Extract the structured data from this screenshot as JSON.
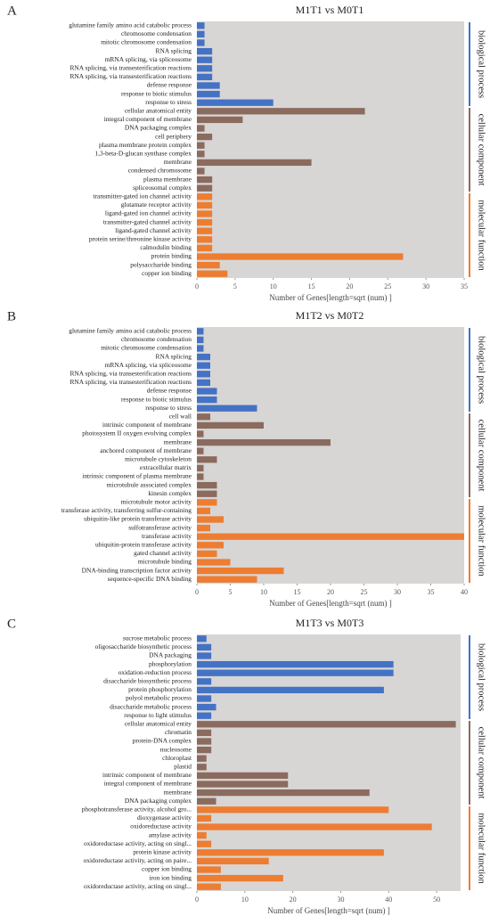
{
  "chart_data": [
    {
      "type": "barh",
      "label": "A",
      "title": "M1T1 vs M0T1",
      "xlabel": "Number of Genes[length=sqrt (num) ]",
      "categories": [
        "glutamine family amino acid catabolic process",
        "chromosome condensation",
        "mitotic chromosome condensation",
        "RNA splicing",
        "mRNA splicing, via spliceosome",
        "RNA splicing, via transesterification reactions",
        "RNA splicing, via transesterification reactions",
        "defense response",
        "response to biotic stimulus",
        "response to stress",
        "cellular anatomical entity",
        "integral component of membrane",
        "DNA packaging complex",
        "cell periphery",
        "plasma membrane protein complex",
        "1,3-beta-D-glucan synthase complex",
        "membrane",
        "condensed chromosome",
        "plasma membrane",
        "spliceosomal complex",
        "transmitter-gated ion channel activity",
        "glutamate receptor activity",
        "ligand-gated ion channel activity",
        "transmitter-gated channel activity",
        "ligand-gated channel activity",
        "protein serine/threonine kinase activity",
        "calmodulin binding",
        "protein binding",
        "polysaccharide binding",
        "copper ion binding"
      ],
      "series": [
        {
          "name": "biological process",
          "color": "#4472c4",
          "values": [
            1,
            1,
            1,
            2,
            2,
            2,
            2,
            3,
            3,
            10,
            null,
            null,
            null,
            null,
            null,
            null,
            null,
            null,
            null,
            null,
            null,
            null,
            null,
            null,
            null,
            null,
            null,
            null,
            null,
            null
          ]
        },
        {
          "name": "cellular component",
          "color": "#8b6b5e",
          "values": [
            null,
            null,
            null,
            null,
            null,
            null,
            null,
            null,
            null,
            null,
            22,
            6,
            1,
            2,
            1,
            1,
            15,
            1,
            2,
            2,
            null,
            null,
            null,
            null,
            null,
            null,
            null,
            null,
            null,
            null
          ]
        },
        {
          "name": "molecular function",
          "color": "#ed7d31",
          "values": [
            null,
            null,
            null,
            null,
            null,
            null,
            null,
            null,
            null,
            null,
            null,
            null,
            null,
            null,
            null,
            null,
            null,
            null,
            null,
            null,
            2,
            2,
            2,
            2,
            2,
            2,
            2,
            27,
            3,
            4
          ]
        }
      ],
      "xlim": [
        0,
        35
      ],
      "xticks": [
        0,
        5,
        10,
        15,
        20,
        25,
        30,
        35
      ]
    },
    {
      "type": "barh",
      "label": "B",
      "title": "M1T2 vs M0T2",
      "xlabel": "Number of Genes[length=sqrt (num) ]",
      "categories": [
        "glutamine family amino acid catabolic process",
        "chromosome condensation",
        "mitotic chromosome condensation",
        "RNA splicing",
        "mRNA splicing, via spliceosome",
        "RNA splicing, via transesterification reactions",
        "RNA splicing, via transesterification reactions",
        "defense response",
        "response to biotic stimulus",
        "response to stress",
        "cell wall",
        "intrinsic component of membrane",
        "photosystem II oxygen evolving complex",
        "membrane",
        "anchored component of membrane",
        "microtubule cytoskeleton",
        "extracellular matrix",
        "intrinsic component of plasma membrane",
        "microtubule associated complex",
        "kinesin complex",
        "microtubule motor activity",
        "transferase activity, transferring sulfur-containing",
        "ubiquitin-like protein transferase activity",
        "sulfotransferase activity",
        "transferase activity",
        "ubiquitin-protein transferase activity",
        "gated channel activity",
        "microtubule binding",
        "DNA-binding transcription factor activity",
        "sequence-specific DNA binding"
      ],
      "series": [
        {
          "name": "biological process",
          "color": "#4472c4",
          "values": [
            1,
            1,
            1,
            2,
            2,
            2,
            2,
            3,
            3,
            9,
            null,
            null,
            null,
            null,
            null,
            null,
            null,
            null,
            null,
            null,
            null,
            null,
            null,
            null,
            null,
            null,
            null,
            null,
            null,
            null
          ]
        },
        {
          "name": "cellular component",
          "color": "#8b6b5e",
          "values": [
            null,
            null,
            null,
            null,
            null,
            null,
            null,
            null,
            null,
            null,
            2,
            10,
            1,
            20,
            1,
            3,
            1,
            1,
            3,
            3,
            null,
            null,
            null,
            null,
            null,
            null,
            null,
            null,
            null,
            null
          ]
        },
        {
          "name": "molecular function",
          "color": "#ed7d31",
          "values": [
            null,
            null,
            null,
            null,
            null,
            null,
            null,
            null,
            null,
            null,
            null,
            null,
            null,
            null,
            null,
            null,
            null,
            null,
            null,
            null,
            3,
            2,
            4,
            2,
            40,
            4,
            3,
            5,
            13,
            9
          ]
        }
      ],
      "xlim": [
        0,
        40
      ],
      "xticks": [
        0,
        5,
        10,
        15,
        20,
        25,
        30,
        35,
        40
      ]
    },
    {
      "type": "barh",
      "label": "C",
      "title": "M1T3 vs M0T3",
      "xlabel": "Number of Genes[length=sqrt (num) ]",
      "categories": [
        "sucrose metabolic process",
        "oligosaccharide biosynthetic process",
        "DNA packaging",
        "phosphorylation",
        "oxidation-reduction process",
        "disaccharide biosynthetic process",
        "protein phosphorylation",
        "polyol metabolic process",
        "disaccharide metabolic process",
        "response to light stimulus",
        "cellular anatomical entity",
        "chromatin",
        "protein-DNA complex",
        "nucleosome",
        "chloroplast",
        "plastid",
        "intrinsic component of membrane",
        "integral component of membrane",
        "membrane",
        "DNA packaging complex",
        "phosphotransferase activity, alcohol gro...",
        "dioxygenase activity",
        "oxidoreductase activity",
        "amylase activity",
        "oxidoreductase activity, acting on singl...",
        "protein kinase activity",
        "oxidoreductase activity, acting on paire...",
        "copper ion binding",
        "iron ion binding",
        "oxidoreductase activity, acting on singl..."
      ],
      "series": [
        {
          "name": "biological process",
          "color": "#4472c4",
          "values": [
            2,
            3,
            3,
            41,
            41,
            3,
            39,
            3,
            4,
            3,
            null,
            null,
            null,
            null,
            null,
            null,
            null,
            null,
            null,
            null,
            null,
            null,
            null,
            null,
            null,
            null,
            null,
            null,
            null,
            null
          ]
        },
        {
          "name": "cellular component",
          "color": "#8b6b5e",
          "values": [
            null,
            null,
            null,
            null,
            null,
            null,
            null,
            null,
            null,
            null,
            54,
            3,
            3,
            3,
            2,
            2,
            19,
            19,
            36,
            4,
            null,
            null,
            null,
            null,
            null,
            null,
            null,
            null,
            null,
            null
          ]
        },
        {
          "name": "molecular function",
          "color": "#ed7d31",
          "values": [
            null,
            null,
            null,
            null,
            null,
            null,
            null,
            null,
            null,
            null,
            null,
            null,
            null,
            null,
            null,
            null,
            null,
            null,
            null,
            null,
            40,
            3,
            49,
            2,
            3,
            39,
            15,
            5,
            18,
            5
          ]
        }
      ],
      "xlim": [
        0,
        55
      ],
      "xticks": [
        0,
        10,
        20,
        30,
        40,
        50
      ]
    }
  ]
}
